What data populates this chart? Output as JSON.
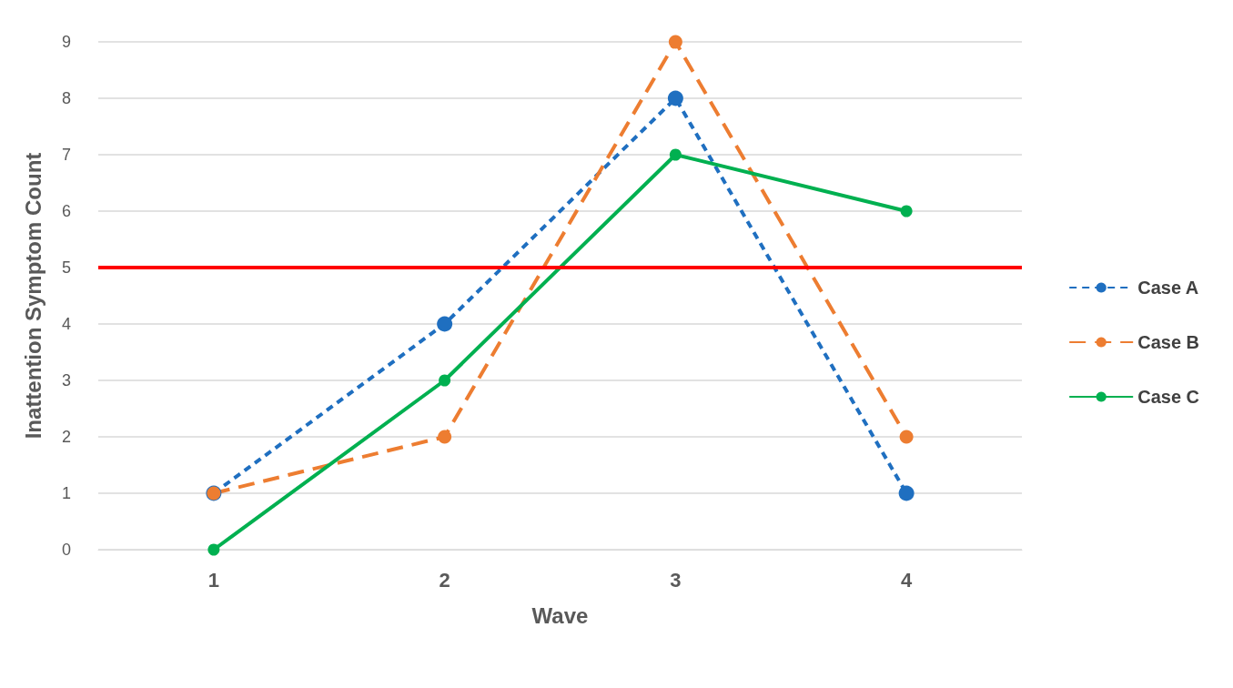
{
  "chart_data": {
    "type": "line",
    "xlabel": "Wave",
    "ylabel": "Inattention Symptom Count",
    "categories": [
      "1",
      "2",
      "3",
      "4"
    ],
    "ylim": [
      0,
      9
    ],
    "yticks": [
      0,
      1,
      2,
      3,
      4,
      5,
      6,
      7,
      8,
      9
    ],
    "grid": "y",
    "legend": "right",
    "marker": "circle",
    "series": [
      {
        "name": "Case A",
        "color": "#1f6fc0",
        "values": [
          1,
          4,
          8,
          1
        ],
        "line_style": "dashed"
      },
      {
        "name": "Case B",
        "color": "#ed7d31",
        "values": [
          1,
          2,
          9,
          2
        ],
        "line_style": "dashed"
      },
      {
        "name": "Case C",
        "color": "#00b050",
        "values": [
          0,
          3,
          7,
          6
        ],
        "line_style": "solid"
      }
    ],
    "ref_lines": [
      {
        "axis": "y",
        "value": 5,
        "color": "#ff0000"
      }
    ]
  }
}
